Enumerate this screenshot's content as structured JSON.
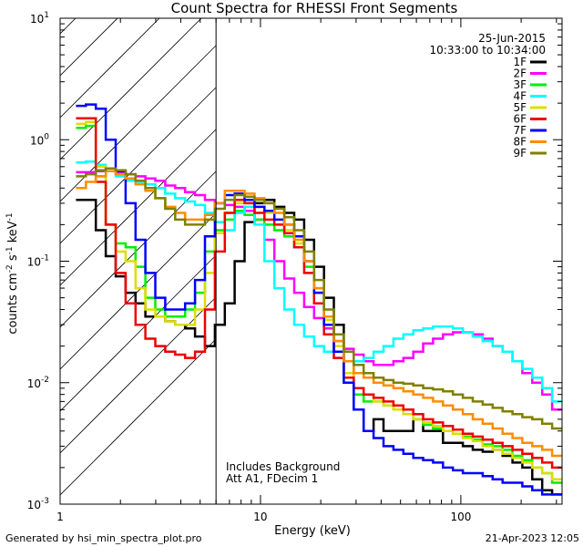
{
  "chart_data": {
    "type": "line",
    "title": "Count Spectra for RHESSI Front Segments",
    "xlabel": "Energy (keV)",
    "ylabel": "counts cm-2 s-1 keV-1",
    "ylabel_parts": {
      "base": "counts cm",
      "exp1": "-2",
      "mid1": " s",
      "exp2": "-1",
      "mid2": " keV",
      "exp3": "-1"
    },
    "xscale": "log",
    "yscale": "log",
    "xlim": [
      1.0,
      320.0
    ],
    "ylim": [
      0.001,
      10
    ],
    "x_tick_labels": [
      "1",
      "10",
      "100"
    ],
    "y_tick_labels": [
      {
        "base": "10",
        "exp": "1"
      },
      {
        "base": "10",
        "exp": "0"
      },
      {
        "base": "10",
        "exp": "-1"
      },
      {
        "base": "10",
        "exp": "-2"
      },
      {
        "base": "10",
        "exp": "-3"
      }
    ],
    "y_tick_values": [
      10,
      1,
      0.1,
      0.01,
      0.001
    ],
    "date": "25-Jun-2015",
    "time_range": "10:33:00 to 10:34:00",
    "annotations": [
      "Includes Background",
      "Att A1, FDecim 1"
    ],
    "excluded_region_keV": [
      1.0,
      6.0
    ],
    "legend_position": "top-right",
    "series": [
      {
        "name": "1F",
        "color": "#000000",
        "values": [
          0.32,
          0.32,
          0.18,
          0.11,
          0.075,
          0.055,
          0.045,
          0.035,
          0.035,
          0.032,
          0.03,
          0.028,
          0.024,
          0.02,
          0.03,
          0.045,
          0.1,
          0.21,
          0.3,
          0.32,
          0.28,
          0.25,
          0.22,
          0.15,
          0.09,
          0.05,
          0.03,
          0.015,
          0.006,
          0.004,
          0.005,
          0.004,
          0.004,
          0.004,
          0.005,
          0.004,
          0.004,
          0.0032,
          0.0032,
          0.003,
          0.0028,
          0.0027,
          0.0028,
          0.0025,
          0.0022,
          0.002,
          0.0016,
          0.0013,
          0.0012
        ]
      },
      {
        "name": "2F",
        "color": "#ff00ff",
        "values": [
          0.54,
          0.54,
          0.55,
          0.55,
          0.54,
          0.52,
          0.5,
          0.48,
          0.46,
          0.42,
          0.4,
          0.37,
          0.35,
          0.32,
          0.3,
          0.29,
          0.28,
          0.26,
          0.22,
          0.15,
          0.1,
          0.072,
          0.055,
          0.042,
          0.034,
          0.028,
          0.022,
          0.019,
          0.017,
          0.015,
          0.014,
          0.014,
          0.015,
          0.016,
          0.018,
          0.021,
          0.023,
          0.025,
          0.026,
          0.026,
          0.025,
          0.023,
          0.02,
          0.018,
          0.015,
          0.012,
          0.01,
          0.008,
          0.006
        ]
      },
      {
        "name": "3F",
        "color": "#00ee00",
        "values": [
          1.25,
          1.3,
          0.5,
          0.2,
          0.14,
          0.13,
          0.09,
          0.05,
          0.04,
          0.035,
          0.035,
          0.04,
          0.055,
          0.12,
          0.18,
          0.22,
          0.26,
          0.24,
          0.22,
          0.2,
          0.18,
          0.16,
          0.13,
          0.09,
          0.055,
          0.03,
          0.018,
          0.01,
          0.008,
          0.007,
          0.007,
          0.0065,
          0.006,
          0.0055,
          0.005,
          0.0045,
          0.0042,
          0.004,
          0.0038,
          0.0036,
          0.0034,
          0.0031,
          0.003,
          0.0028,
          0.0025,
          0.0023,
          0.002,
          0.0018,
          0.0015
        ]
      },
      {
        "name": "4F",
        "color": "#00ffff",
        "values": [
          0.65,
          0.66,
          0.62,
          0.55,
          0.5,
          0.46,
          0.45,
          0.43,
          0.4,
          0.36,
          0.33,
          0.31,
          0.29,
          0.25,
          0.21,
          0.18,
          0.25,
          0.28,
          0.2,
          0.1,
          0.06,
          0.04,
          0.03,
          0.024,
          0.02,
          0.018,
          0.016,
          0.015,
          0.015,
          0.016,
          0.018,
          0.02,
          0.023,
          0.025,
          0.027,
          0.028,
          0.029,
          0.029,
          0.028,
          0.026,
          0.024,
          0.022,
          0.02,
          0.018,
          0.015,
          0.013,
          0.011,
          0.009,
          0.007
        ]
      },
      {
        "name": "5F",
        "color": "#dddd00",
        "values": [
          1.35,
          1.4,
          0.6,
          0.2,
          0.12,
          0.1,
          0.06,
          0.04,
          0.035,
          0.032,
          0.03,
          0.03,
          0.04,
          0.08,
          0.17,
          0.25,
          0.3,
          0.3,
          0.28,
          0.25,
          0.22,
          0.18,
          0.14,
          0.1,
          0.06,
          0.033,
          0.02,
          0.012,
          0.009,
          0.008,
          0.007,
          0.0065,
          0.006,
          0.0055,
          0.005,
          0.0047,
          0.0044,
          0.004,
          0.0038,
          0.0035,
          0.0033,
          0.003,
          0.0028,
          0.0026,
          0.0024,
          0.0022,
          0.002,
          0.0018,
          0.0016
        ]
      },
      {
        "name": "6F",
        "color": "#ee0000",
        "values": [
          1.5,
          1.5,
          0.45,
          0.2,
          0.08,
          0.045,
          0.03,
          0.023,
          0.02,
          0.018,
          0.017,
          0.016,
          0.018,
          0.04,
          0.12,
          0.25,
          0.32,
          0.3,
          0.25,
          0.22,
          0.2,
          0.17,
          0.13,
          0.08,
          0.045,
          0.025,
          0.016,
          0.011,
          0.009,
          0.008,
          0.0075,
          0.007,
          0.0065,
          0.006,
          0.0055,
          0.005,
          0.0047,
          0.0044,
          0.0041,
          0.0038,
          0.0036,
          0.0034,
          0.0032,
          0.003,
          0.0028,
          0.0026,
          0.0024,
          0.0022,
          0.002
        ]
      },
      {
        "name": "7F",
        "color": "#0000ff",
        "values": [
          1.9,
          1.95,
          1.8,
          1.0,
          0.55,
          0.3,
          0.15,
          0.08,
          0.05,
          0.04,
          0.04,
          0.045,
          0.07,
          0.16,
          0.3,
          0.35,
          0.36,
          0.32,
          0.28,
          0.26,
          0.22,
          0.2,
          0.16,
          0.1,
          0.055,
          0.03,
          0.018,
          0.01,
          0.006,
          0.004,
          0.0035,
          0.003,
          0.0028,
          0.0026,
          0.0024,
          0.0023,
          0.0022,
          0.002,
          0.0019,
          0.0018,
          0.0018,
          0.0017,
          0.0016,
          0.0015,
          0.0015,
          0.0014,
          0.0013,
          0.0012,
          0.0012
        ]
      },
      {
        "name": "8F",
        "color": "#ff8c00",
        "values": [
          0.4,
          0.45,
          0.5,
          0.55,
          0.52,
          0.48,
          0.43,
          0.38,
          0.33,
          0.28,
          0.25,
          0.22,
          0.22,
          0.24,
          0.3,
          0.38,
          0.38,
          0.36,
          0.33,
          0.3,
          0.25,
          0.2,
          0.15,
          0.1,
          0.06,
          0.035,
          0.022,
          0.015,
          0.012,
          0.011,
          0.01,
          0.0095,
          0.009,
          0.0085,
          0.008,
          0.0075,
          0.007,
          0.0065,
          0.006,
          0.0055,
          0.005,
          0.0046,
          0.0042,
          0.0038,
          0.0035,
          0.0032,
          0.003,
          0.0028,
          0.0025
        ]
      },
      {
        "name": "9F",
        "color": "#808000",
        "values": [
          0.5,
          0.52,
          0.56,
          0.58,
          0.56,
          0.52,
          0.46,
          0.4,
          0.33,
          0.27,
          0.22,
          0.2,
          0.2,
          0.22,
          0.27,
          0.32,
          0.35,
          0.34,
          0.32,
          0.3,
          0.27,
          0.23,
          0.18,
          0.12,
          0.07,
          0.04,
          0.025,
          0.018,
          0.014,
          0.012,
          0.011,
          0.0105,
          0.01,
          0.0098,
          0.0095,
          0.009,
          0.0088,
          0.0085,
          0.008,
          0.0075,
          0.007,
          0.0066,
          0.0062,
          0.0058,
          0.0055,
          0.0052,
          0.005,
          0.0046,
          0.0042
        ]
      }
    ]
  },
  "footer": {
    "generated_by": "Generated by hsi_min_spectra_plot.pro",
    "timestamp": "21-Apr-2023 12:05"
  }
}
